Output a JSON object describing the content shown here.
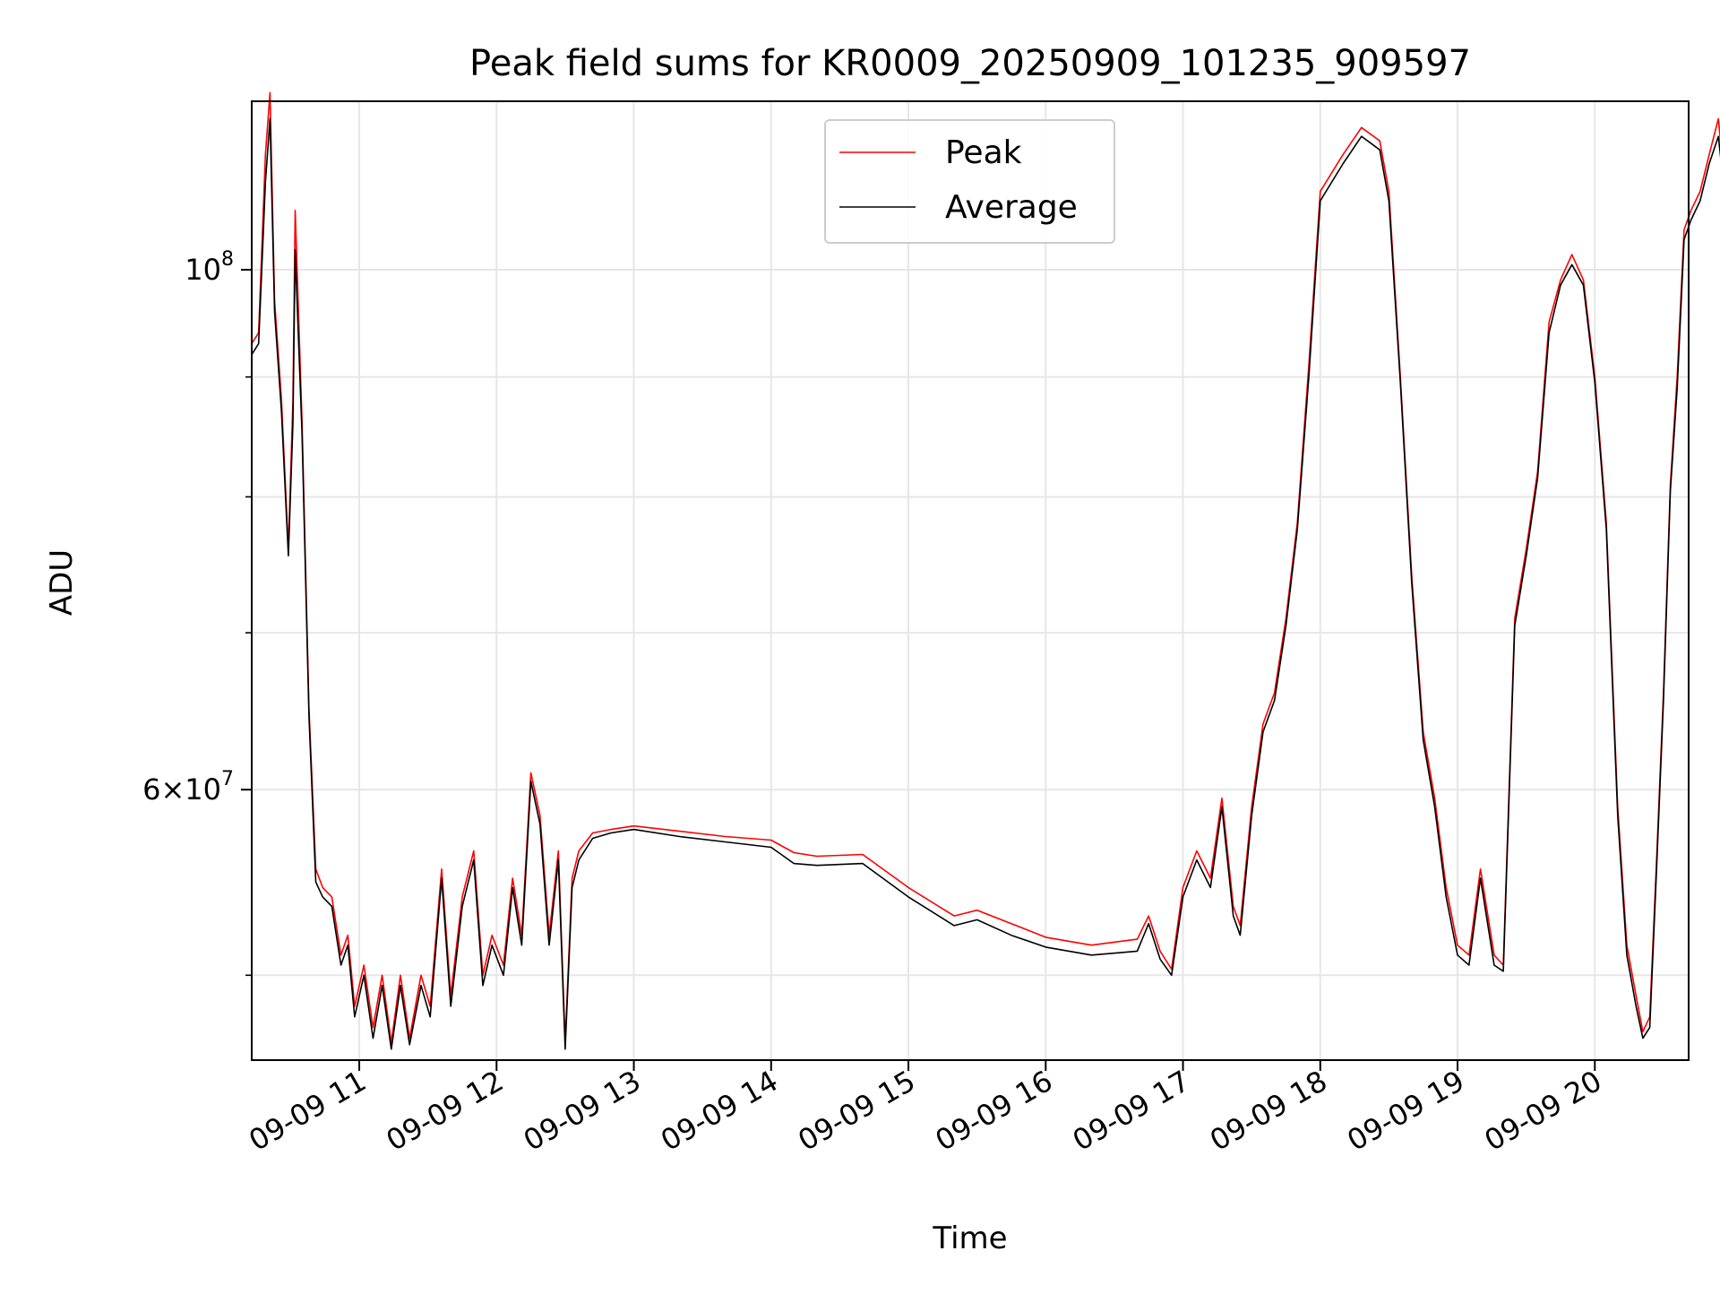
{
  "chart_data": {
    "type": "line",
    "title": "Peak field sums for KR0009_20250909_101235_909597",
    "xlabel": "Time",
    "ylabel": "ADU",
    "x_axis_type": "time",
    "y_scale": "log",
    "xlim": [
      "2025-09-09 10:13",
      "2025-09-09 20:41"
    ],
    "ylim": [
      46000000,
      118000000
    ],
    "x_tick_labels": [
      "09-09 11",
      "09-09 12",
      "09-09 13",
      "09-09 14",
      "09-09 15",
      "09-09 16",
      "09-09 17",
      "09-09 18",
      "09-09 19",
      "09-09 20"
    ],
    "x_ticks": [
      "2025-09-09 11:00",
      "2025-09-09 12:00",
      "2025-09-09 13:00",
      "2025-09-09 14:00",
      "2025-09-09 15:00",
      "2025-09-09 16:00",
      "2025-09-09 17:00",
      "2025-09-09 18:00",
      "2025-09-09 19:00",
      "2025-09-09 20:00"
    ],
    "y_major_ticks": [
      {
        "value": 100000000,
        "base": "10",
        "exp": "8"
      },
      {
        "value": 60000000,
        "mantissa": "6",
        "base": "10",
        "exp": "7"
      }
    ],
    "y_minor_ticks": [
      50000000,
      70000000,
      80000000,
      90000000
    ],
    "grid": true,
    "legend_position": "top-center",
    "series": [
      {
        "name": "Peak",
        "color": "#ff0000",
        "points": [
          [
            "2025-09-09 10:13",
            93000000
          ],
          [
            "2025-09-09 10:16",
            94000000
          ],
          [
            "2025-09-09 10:19",
            112000000
          ],
          [
            "2025-09-09 10:21",
            119000000
          ],
          [
            "2025-09-09 10:23",
            97000000
          ],
          [
            "2025-09-09 10:26",
            88000000
          ],
          [
            "2025-09-09 10:29",
            76000000
          ],
          [
            "2025-09-09 10:31",
            88000000
          ],
          [
            "2025-09-09 10:32",
            106000000
          ],
          [
            "2025-09-09 10:35",
            86000000
          ],
          [
            "2025-09-09 10:38",
            65000000
          ],
          [
            "2025-09-09 10:41",
            55500000
          ],
          [
            "2025-09-09 10:44",
            54500000
          ],
          [
            "2025-09-09 10:48",
            54000000
          ],
          [
            "2025-09-09 10:52",
            51000000
          ],
          [
            "2025-09-09 10:55",
            52000000
          ],
          [
            "2025-09-09 10:58",
            48500000
          ],
          [
            "2025-09-09 11:02",
            50500000
          ],
          [
            "2025-09-09 11:06",
            47500000
          ],
          [
            "2025-09-09 11:10",
            50000000
          ],
          [
            "2025-09-09 11:14",
            46800000
          ],
          [
            "2025-09-09 11:18",
            50000000
          ],
          [
            "2025-09-09 11:22",
            47000000
          ],
          [
            "2025-09-09 11:27",
            50000000
          ],
          [
            "2025-09-09 11:31",
            48500000
          ],
          [
            "2025-09-09 11:36",
            55500000
          ],
          [
            "2025-09-09 11:40",
            49000000
          ],
          [
            "2025-09-09 11:45",
            54000000
          ],
          [
            "2025-09-09 11:50",
            56500000
          ],
          [
            "2025-09-09 11:54",
            50000000
          ],
          [
            "2025-09-09 11:58",
            52000000
          ],
          [
            "2025-09-09 12:03",
            50500000
          ],
          [
            "2025-09-09 12:07",
            55000000
          ],
          [
            "2025-09-09 12:11",
            52000000
          ],
          [
            "2025-09-09 12:15",
            61000000
          ],
          [
            "2025-09-09 12:19",
            58500000
          ],
          [
            "2025-09-09 12:23",
            52000000
          ],
          [
            "2025-09-09 12:27",
            56500000
          ],
          [
            "2025-09-09 12:30",
            46800000
          ],
          [
            "2025-09-09 12:33",
            55000000
          ],
          [
            "2025-09-09 12:36",
            56500000
          ],
          [
            "2025-09-09 12:42",
            57500000
          ],
          [
            "2025-09-09 12:50",
            57700000
          ],
          [
            "2025-09-09 13:00",
            57900000
          ],
          [
            "2025-09-09 13:20",
            57600000
          ],
          [
            "2025-09-09 13:40",
            57300000
          ],
          [
            "2025-09-09 14:00",
            57100000
          ],
          [
            "2025-09-09 14:10",
            56400000
          ],
          [
            "2025-09-09 14:20",
            56200000
          ],
          [
            "2025-09-09 14:40",
            56300000
          ],
          [
            "2025-09-09 15:00",
            54500000
          ],
          [
            "2025-09-09 15:20",
            53000000
          ],
          [
            "2025-09-09 15:30",
            53300000
          ],
          [
            "2025-09-09 15:45",
            52600000
          ],
          [
            "2025-09-09 16:00",
            51900000
          ],
          [
            "2025-09-09 16:20",
            51500000
          ],
          [
            "2025-09-09 16:40",
            51800000
          ],
          [
            "2025-09-09 16:45",
            53000000
          ],
          [
            "2025-09-09 16:50",
            51200000
          ],
          [
            "2025-09-09 16:55",
            50300000
          ],
          [
            "2025-09-09 17:00",
            54500000
          ],
          [
            "2025-09-09 17:06",
            56500000
          ],
          [
            "2025-09-09 17:12",
            55000000
          ],
          [
            "2025-09-09 17:17",
            59500000
          ],
          [
            "2025-09-09 17:22",
            53500000
          ],
          [
            "2025-09-09 17:25",
            52500000
          ],
          [
            "2025-09-09 17:30",
            59000000
          ],
          [
            "2025-09-09 17:35",
            64000000
          ],
          [
            "2025-09-09 17:40",
            66000000
          ],
          [
            "2025-09-09 17:45",
            71000000
          ],
          [
            "2025-09-09 17:50",
            78000000
          ],
          [
            "2025-09-09 17:55",
            91000000
          ],
          [
            "2025-09-09 18:00",
            108000000
          ],
          [
            "2025-09-09 18:10",
            112000000
          ],
          [
            "2025-09-09 18:18",
            115000000
          ],
          [
            "2025-09-09 18:26",
            113500000
          ],
          [
            "2025-09-09 18:30",
            108000000
          ],
          [
            "2025-09-09 18:35",
            90000000
          ],
          [
            "2025-09-09 18:40",
            74000000
          ],
          [
            "2025-09-09 18:45",
            63500000
          ],
          [
            "2025-09-09 18:50",
            59500000
          ],
          [
            "2025-09-09 18:55",
            54500000
          ],
          [
            "2025-09-09 19:00",
            51500000
          ],
          [
            "2025-09-09 19:05",
            51000000
          ],
          [
            "2025-09-09 19:10",
            55500000
          ],
          [
            "2025-09-09 19:16",
            51000000
          ],
          [
            "2025-09-09 19:20",
            50500000
          ],
          [
            "2025-09-09 19:25",
            71000000
          ],
          [
            "2025-09-09 19:30",
            76000000
          ],
          [
            "2025-09-09 19:35",
            82000000
          ],
          [
            "2025-09-09 19:40",
            95000000
          ],
          [
            "2025-09-09 19:45",
            99000000
          ],
          [
            "2025-09-09 19:50",
            101500000
          ],
          [
            "2025-09-09 19:55",
            99000000
          ],
          [
            "2025-09-09 20:00",
            90000000
          ],
          [
            "2025-09-09 20:05",
            78000000
          ],
          [
            "2025-09-09 20:10",
            59000000
          ],
          [
            "2025-09-09 20:14",
            51500000
          ],
          [
            "2025-09-09 20:18",
            49000000
          ],
          [
            "2025-09-09 20:21",
            47300000
          ],
          [
            "2025-09-09 20:24",
            48000000
          ],
          [
            "2025-09-09 20:27",
            56000000
          ],
          [
            "2025-09-09 20:30",
            66000000
          ],
          [
            "2025-09-09 20:33",
            81000000
          ],
          [
            "2025-09-09 20:36",
            90000000
          ],
          [
            "2025-09-09 20:39",
            104000000
          ],
          [
            "2025-09-09 20:42",
            106000000
          ],
          [
            "2025-09-09 20:46",
            108000000
          ],
          [
            "2025-09-09 20:50",
            112000000
          ],
          [
            "2025-09-09 20:54",
            116000000
          ],
          [
            "2025-09-09 20:57",
            108000000
          ]
        ]
      },
      {
        "name": "Average",
        "color": "#000000",
        "points": [
          [
            "2025-09-09 10:13",
            92000000
          ],
          [
            "2025-09-09 10:16",
            93000000
          ],
          [
            "2025-09-09 10:19",
            109000000
          ],
          [
            "2025-09-09 10:21",
            116000000
          ],
          [
            "2025-09-09 10:23",
            96000000
          ],
          [
            "2025-09-09 10:26",
            87000000
          ],
          [
            "2025-09-09 10:29",
            75500000
          ],
          [
            "2025-09-09 10:31",
            86000000
          ],
          [
            "2025-09-09 10:32",
            102000000
          ],
          [
            "2025-09-09 10:35",
            85000000
          ],
          [
            "2025-09-09 10:38",
            64500000
          ],
          [
            "2025-09-09 10:41",
            54800000
          ],
          [
            "2025-09-09 10:44",
            54000000
          ],
          [
            "2025-09-09 10:48",
            53500000
          ],
          [
            "2025-09-09 10:52",
            50500000
          ],
          [
            "2025-09-09 10:55",
            51500000
          ],
          [
            "2025-09-09 10:58",
            48000000
          ],
          [
            "2025-09-09 11:02",
            50000000
          ],
          [
            "2025-09-09 11:06",
            47000000
          ],
          [
            "2025-09-09 11:10",
            49500000
          ],
          [
            "2025-09-09 11:14",
            46500000
          ],
          [
            "2025-09-09 11:18",
            49500000
          ],
          [
            "2025-09-09 11:22",
            46700000
          ],
          [
            "2025-09-09 11:27",
            49500000
          ],
          [
            "2025-09-09 11:31",
            48000000
          ],
          [
            "2025-09-09 11:36",
            55000000
          ],
          [
            "2025-09-09 11:40",
            48500000
          ],
          [
            "2025-09-09 11:45",
            53500000
          ],
          [
            "2025-09-09 11:50",
            56000000
          ],
          [
            "2025-09-09 11:54",
            49500000
          ],
          [
            "2025-09-09 11:58",
            51500000
          ],
          [
            "2025-09-09 12:03",
            50000000
          ],
          [
            "2025-09-09 12:07",
            54500000
          ],
          [
            "2025-09-09 12:11",
            51500000
          ],
          [
            "2025-09-09 12:15",
            60500000
          ],
          [
            "2025-09-09 12:19",
            58000000
          ],
          [
            "2025-09-09 12:23",
            51500000
          ],
          [
            "2025-09-09 12:27",
            56000000
          ],
          [
            "2025-09-09 12:30",
            46500000
          ],
          [
            "2025-09-09 12:33",
            54500000
          ],
          [
            "2025-09-09 12:36",
            56000000
          ],
          [
            "2025-09-09 12:42",
            57200000
          ],
          [
            "2025-09-09 12:50",
            57500000
          ],
          [
            "2025-09-09 13:00",
            57700000
          ],
          [
            "2025-09-09 13:20",
            57300000
          ],
          [
            "2025-09-09 13:40",
            57000000
          ],
          [
            "2025-09-09 14:00",
            56700000
          ],
          [
            "2025-09-09 14:10",
            55800000
          ],
          [
            "2025-09-09 14:20",
            55700000
          ],
          [
            "2025-09-09 14:40",
            55800000
          ],
          [
            "2025-09-09 15:00",
            54000000
          ],
          [
            "2025-09-09 15:20",
            52500000
          ],
          [
            "2025-09-09 15:30",
            52800000
          ],
          [
            "2025-09-09 15:45",
            52000000
          ],
          [
            "2025-09-09 16:00",
            51400000
          ],
          [
            "2025-09-09 16:20",
            51000000
          ],
          [
            "2025-09-09 16:40",
            51200000
          ],
          [
            "2025-09-09 16:45",
            52600000
          ],
          [
            "2025-09-09 16:50",
            50800000
          ],
          [
            "2025-09-09 16:55",
            50000000
          ],
          [
            "2025-09-09 17:00",
            54000000
          ],
          [
            "2025-09-09 17:06",
            56000000
          ],
          [
            "2025-09-09 17:12",
            54500000
          ],
          [
            "2025-09-09 17:17",
            59000000
          ],
          [
            "2025-09-09 17:22",
            53000000
          ],
          [
            "2025-09-09 17:25",
            52000000
          ],
          [
            "2025-09-09 17:30",
            58500000
          ],
          [
            "2025-09-09 17:35",
            63500000
          ],
          [
            "2025-09-09 17:40",
            65500000
          ],
          [
            "2025-09-09 17:45",
            70500000
          ],
          [
            "2025-09-09 17:50",
            77500000
          ],
          [
            "2025-09-09 17:55",
            90000000
          ],
          [
            "2025-09-09 18:00",
            107000000
          ],
          [
            "2025-09-09 18:10",
            111000000
          ],
          [
            "2025-09-09 18:18",
            114000000
          ],
          [
            "2025-09-09 18:26",
            112500000
          ],
          [
            "2025-09-09 18:30",
            107000000
          ],
          [
            "2025-09-09 18:35",
            89500000
          ],
          [
            "2025-09-09 18:40",
            73500000
          ],
          [
            "2025-09-09 18:45",
            63000000
          ],
          [
            "2025-09-09 18:50",
            59000000
          ],
          [
            "2025-09-09 18:55",
            54000000
          ],
          [
            "2025-09-09 19:00",
            51000000
          ],
          [
            "2025-09-09 19:05",
            50500000
          ],
          [
            "2025-09-09 19:10",
            55000000
          ],
          [
            "2025-09-09 19:16",
            50500000
          ],
          [
            "2025-09-09 19:20",
            50200000
          ],
          [
            "2025-09-09 19:25",
            70500000
          ],
          [
            "2025-09-09 19:30",
            75500000
          ],
          [
            "2025-09-09 19:35",
            81500000
          ],
          [
            "2025-09-09 19:40",
            94000000
          ],
          [
            "2025-09-09 19:45",
            98500000
          ],
          [
            "2025-09-09 19:50",
            100500000
          ],
          [
            "2025-09-09 19:55",
            98500000
          ],
          [
            "2025-09-09 20:00",
            89500000
          ],
          [
            "2025-09-09 20:05",
            77500000
          ],
          [
            "2025-09-09 20:10",
            58500000
          ],
          [
            "2025-09-09 20:14",
            51000000
          ],
          [
            "2025-09-09 20:18",
            48500000
          ],
          [
            "2025-09-09 20:21",
            47000000
          ],
          [
            "2025-09-09 20:24",
            47500000
          ],
          [
            "2025-09-09 20:27",
            55500000
          ],
          [
            "2025-09-09 20:30",
            65500000
          ],
          [
            "2025-09-09 20:33",
            80500000
          ],
          [
            "2025-09-09 20:36",
            89000000
          ],
          [
            "2025-09-09 20:39",
            103000000
          ],
          [
            "2025-09-09 20:42",
            105000000
          ],
          [
            "2025-09-09 20:46",
            107000000
          ],
          [
            "2025-09-09 20:50",
            111000000
          ],
          [
            "2025-09-09 20:54",
            114000000
          ],
          [
            "2025-09-09 20:57",
            107000000
          ]
        ]
      }
    ]
  }
}
